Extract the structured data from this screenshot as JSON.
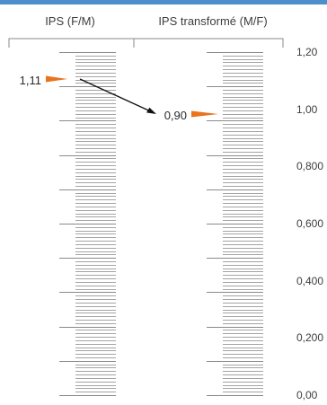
{
  "columns": [
    {
      "id": "left",
      "header": "IPS (F/M)"
    },
    {
      "id": "right",
      "header": "IPS transformé (M/F)"
    }
  ],
  "right_axis": {
    "labels": [
      "1,20",
      "1,00",
      "0,800",
      "0,600",
      "0,400",
      "0,200",
      "0,00"
    ],
    "values": [
      1.2,
      1.0,
      0.8,
      0.6,
      0.4,
      0.2,
      0.0
    ]
  },
  "markers": {
    "left": {
      "label": "1,11",
      "value": 1.11
    },
    "right": {
      "label": "0,90",
      "value": 0.9
    }
  },
  "colors": {
    "header_bar": "#4d8fcc",
    "marker": "#e8741e",
    "text": "#3d3d3d",
    "rule": "#888888",
    "arrow": "#111111"
  }
}
